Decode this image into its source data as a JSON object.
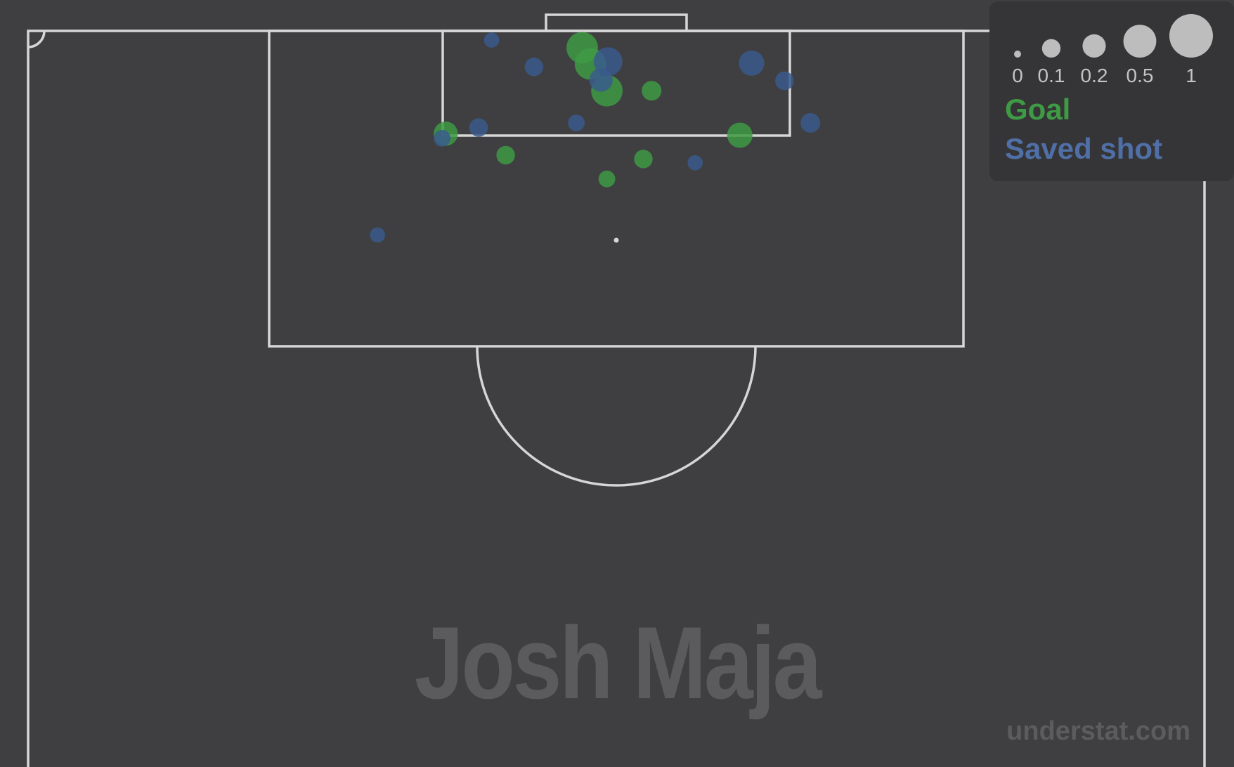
{
  "chart_data": {
    "type": "scatter",
    "player": "Josh Maja",
    "site": "understat.com",
    "x_range": [
      0,
      1
    ],
    "y_range": [
      0,
      1
    ],
    "size_variable": "xG",
    "size_legend": [
      0,
      0.1,
      0.2,
      0.5,
      1
    ],
    "series": [
      {
        "name": "Goal",
        "color": "#3e9a44",
        "points": [
          {
            "x": 0.471,
            "y": 0.978,
            "xg": 0.45
          },
          {
            "x": 0.478,
            "y": 0.957,
            "xg": 0.45
          },
          {
            "x": 0.492,
            "y": 0.922,
            "xg": 0.45
          },
          {
            "x": 0.53,
            "y": 0.922,
            "xg": 0.12
          },
          {
            "x": 0.355,
            "y": 0.866,
            "xg": 0.22
          },
          {
            "x": 0.605,
            "y": 0.864,
            "xg": 0.25
          },
          {
            "x": 0.406,
            "y": 0.838,
            "xg": 0.1
          },
          {
            "x": 0.523,
            "y": 0.833,
            "xg": 0.1
          },
          {
            "x": 0.492,
            "y": 0.807,
            "xg": 0.07
          }
        ]
      },
      {
        "name": "Saved shot",
        "color": "#3a5b8c",
        "points": [
          {
            "x": 0.394,
            "y": 0.988,
            "xg": 0.05
          },
          {
            "x": 0.493,
            "y": 0.96,
            "xg": 0.35
          },
          {
            "x": 0.615,
            "y": 0.958,
            "xg": 0.25
          },
          {
            "x": 0.43,
            "y": 0.953,
            "xg": 0.1
          },
          {
            "x": 0.487,
            "y": 0.936,
            "xg": 0.2
          },
          {
            "x": 0.643,
            "y": 0.935,
            "xg": 0.1
          },
          {
            "x": 0.466,
            "y": 0.88,
            "xg": 0.07
          },
          {
            "x": 0.665,
            "y": 0.88,
            "xg": 0.12
          },
          {
            "x": 0.383,
            "y": 0.874,
            "xg": 0.1
          },
          {
            "x": 0.352,
            "y": 0.86,
            "xg": 0.07
          },
          {
            "x": 0.567,
            "y": 0.828,
            "xg": 0.05
          },
          {
            "x": 0.297,
            "y": 0.734,
            "xg": 0.05
          }
        ]
      }
    ]
  }
}
